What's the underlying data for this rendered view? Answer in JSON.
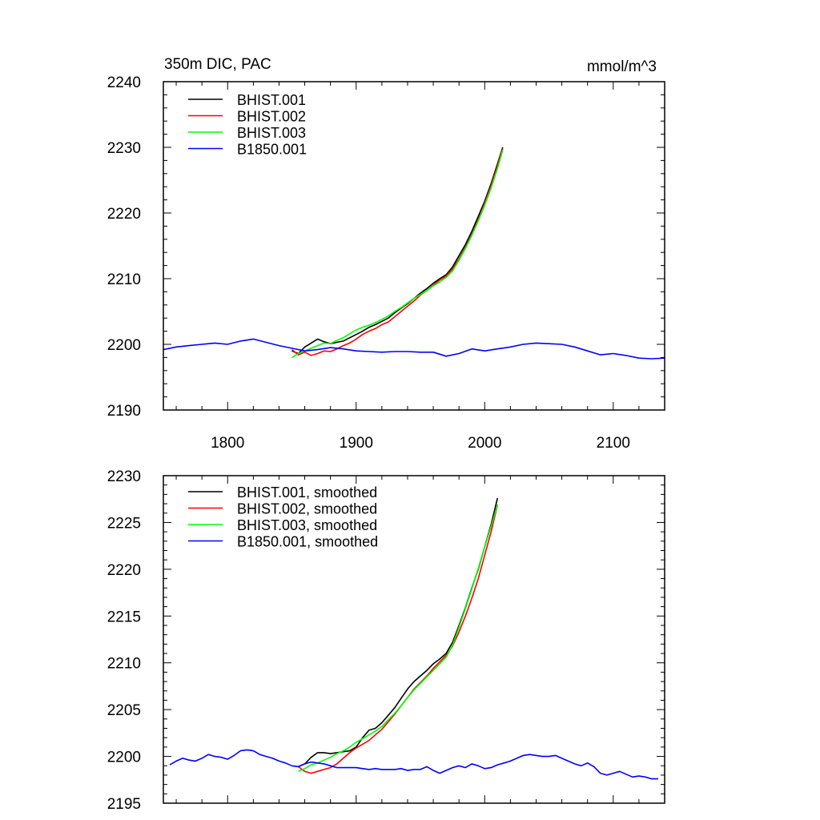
{
  "chart_data": [
    {
      "type": "line",
      "title": "350m DIC, PAC",
      "units": "mmol/m^3",
      "xlim": [
        1750,
        2140
      ],
      "ylim": [
        2190,
        2240
      ],
      "xticks": [
        1800,
        1900,
        2000,
        2100
      ],
      "yticks": [
        2190,
        2200,
        2210,
        2220,
        2230,
        2240
      ],
      "xtick_labels": [
        "1800",
        "1900",
        "2000",
        "2100"
      ],
      "ytick_labels": [
        "2190",
        "2200",
        "2210",
        "2220",
        "2230",
        "2240"
      ],
      "grid": false,
      "legend_position": "top-left",
      "series": [
        {
          "name": "BHIST.001",
          "color": "#000000",
          "x": [
            1850,
            1855,
            1860,
            1865,
            1870,
            1875,
            1880,
            1885,
            1890,
            1895,
            1900,
            1905,
            1910,
            1915,
            1920,
            1925,
            1930,
            1935,
            1940,
            1945,
            1950,
            1955,
            1960,
            1965,
            1970,
            1975,
            1980,
            1985,
            1990,
            1995,
            2000,
            2005,
            2010,
            2014
          ],
          "y": [
            2199.0,
            2198.6,
            2199.6,
            2200.2,
            2200.8,
            2200.4,
            2200.1,
            2200.3,
            2200.5,
            2201.0,
            2201.5,
            2202.0,
            2202.6,
            2203.0,
            2203.5,
            2204.0,
            2204.8,
            2205.5,
            2206.2,
            2207.0,
            2207.8,
            2208.5,
            2209.3,
            2210.0,
            2210.6,
            2211.8,
            2213.5,
            2215.2,
            2217.2,
            2219.5,
            2221.8,
            2224.5,
            2227.5,
            2230.0
          ]
        },
        {
          "name": "BHIST.002",
          "color": "#ff0000",
          "x": [
            1850,
            1855,
            1860,
            1865,
            1870,
            1875,
            1880,
            1885,
            1890,
            1895,
            1900,
            1905,
            1910,
            1915,
            1920,
            1925,
            1930,
            1935,
            1940,
            1945,
            1950,
            1955,
            1960,
            1965,
            1970,
            1975,
            1980,
            1985,
            1990,
            1995,
            2000,
            2005,
            2010,
            2014
          ],
          "y": [
            2199.2,
            2198.4,
            2198.8,
            2198.3,
            2198.6,
            2199.0,
            2198.9,
            2199.3,
            2199.8,
            2200.2,
            2200.8,
            2201.5,
            2202.0,
            2202.4,
            2203.0,
            2203.4,
            2204.2,
            2205.0,
            2205.8,
            2206.6,
            2207.5,
            2208.2,
            2209.0,
            2209.8,
            2210.4,
            2211.5,
            2213.0,
            2214.8,
            2216.8,
            2219.0,
            2221.5,
            2224.2,
            2227.2,
            2229.8
          ]
        },
        {
          "name": "BHIST.003",
          "color": "#00ff00",
          "x": [
            1850,
            1855,
            1860,
            1865,
            1870,
            1875,
            1880,
            1885,
            1890,
            1895,
            1900,
            1905,
            1910,
            1915,
            1920,
            1925,
            1930,
            1935,
            1940,
            1945,
            1950,
            1955,
            1960,
            1965,
            1970,
            1975,
            1980,
            1985,
            1990,
            1995,
            2000,
            2005,
            2010,
            2014
          ],
          "y": [
            2198.0,
            2198.6,
            2199.0,
            2199.4,
            2199.8,
            2200.2,
            2200.1,
            2200.6,
            2201.0,
            2201.6,
            2202.2,
            2202.6,
            2202.9,
            2203.3,
            2203.8,
            2204.3,
            2205.0,
            2205.6,
            2206.3,
            2207.0,
            2207.6,
            2208.2,
            2208.9,
            2209.5,
            2210.2,
            2211.2,
            2212.8,
            2214.6,
            2216.6,
            2218.8,
            2221.2,
            2223.8,
            2226.8,
            2229.6
          ]
        },
        {
          "name": "B1850.001",
          "color": "#0000ff",
          "x": [
            1750,
            1760,
            1770,
            1780,
            1790,
            1800,
            1810,
            1820,
            1830,
            1840,
            1850,
            1860,
            1870,
            1880,
            1890,
            1900,
            1910,
            1920,
            1930,
            1940,
            1950,
            1960,
            1970,
            1980,
            1990,
            2000,
            2010,
            2020,
            2030,
            2040,
            2050,
            2060,
            2070,
            2080,
            2090,
            2100,
            2110,
            2120,
            2130,
            2140
          ],
          "y": [
            2199.2,
            2199.6,
            2199.8,
            2200.0,
            2200.2,
            2200.0,
            2200.5,
            2200.8,
            2200.3,
            2199.8,
            2199.4,
            2199.0,
            2199.2,
            2199.5,
            2199.3,
            2199.0,
            2198.9,
            2198.8,
            2198.9,
            2198.9,
            2198.8,
            2198.8,
            2198.2,
            2198.6,
            2199.3,
            2199.0,
            2199.3,
            2199.6,
            2200.0,
            2200.2,
            2200.1,
            2200.0,
            2199.6,
            2199.0,
            2198.4,
            2198.6,
            2198.3,
            2197.9,
            2197.8,
            2197.9
          ]
        }
      ]
    },
    {
      "type": "line",
      "xlim": [
        1750,
        2140
      ],
      "ylim": [
        2195,
        2230
      ],
      "xticks": [
        1800,
        1900,
        2000,
        2100
      ],
      "yticks": [
        2195,
        2200,
        2205,
        2210,
        2215,
        2220,
        2225,
        2230
      ],
      "ytick_labels": [
        "2195",
        "2200",
        "2205",
        "2210",
        "2215",
        "2220",
        "2225",
        "2230"
      ],
      "grid": false,
      "legend_position": "top-left",
      "series": [
        {
          "name": "BHIST.001, smoothed",
          "color": "#000000",
          "x": [
            1855,
            1860,
            1865,
            1870,
            1875,
            1880,
            1885,
            1890,
            1895,
            1900,
            1905,
            1910,
            1915,
            1920,
            1925,
            1930,
            1935,
            1940,
            1945,
            1950,
            1955,
            1960,
            1965,
            1970,
            1975,
            1980,
            1985,
            1990,
            1995,
            2000,
            2005,
            2010
          ],
          "y": [
            2198.9,
            2199.2,
            2199.9,
            2200.4,
            2200.4,
            2200.3,
            2200.4,
            2200.5,
            2200.6,
            2201.0,
            2202.0,
            2202.8,
            2203.0,
            2203.6,
            2204.4,
            2205.2,
            2206.2,
            2207.2,
            2208.0,
            2208.6,
            2209.2,
            2209.9,
            2210.4,
            2211.0,
            2212.2,
            2214.0,
            2215.9,
            2218.0,
            2220.0,
            2222.4,
            2224.8,
            2227.6
          ]
        },
        {
          "name": "BHIST.002, smoothed",
          "color": "#ff0000",
          "x": [
            1855,
            1860,
            1865,
            1870,
            1875,
            1880,
            1885,
            1890,
            1895,
            1900,
            1905,
            1910,
            1915,
            1920,
            1925,
            1930,
            1935,
            1940,
            1945,
            1950,
            1955,
            1960,
            1965,
            1970,
            1975,
            1980,
            1985,
            1990,
            1995,
            2000,
            2005,
            2010
          ],
          "y": [
            2198.9,
            2198.4,
            2198.2,
            2198.4,
            2198.6,
            2198.8,
            2199.2,
            2199.8,
            2200.4,
            2200.9,
            2201.3,
            2201.7,
            2202.3,
            2202.9,
            2203.7,
            2204.5,
            2205.4,
            2206.3,
            2207.2,
            2207.9,
            2208.6,
            2209.4,
            2210.1,
            2210.8,
            2211.8,
            2213.3,
            2215.0,
            2216.9,
            2219.0,
            2221.5,
            2224.0,
            2226.9
          ]
        },
        {
          "name": "BHIST.003, smoothed",
          "color": "#00ff00",
          "x": [
            1855,
            1860,
            1865,
            1870,
            1875,
            1880,
            1885,
            1890,
            1895,
            1900,
            1905,
            1910,
            1915,
            1920,
            1925,
            1930,
            1935,
            1940,
            1945,
            1950,
            1955,
            1960,
            1965,
            1970,
            1975,
            1980,
            1985,
            1990,
            1995,
            2000,
            2005,
            2010
          ],
          "y": [
            2198.4,
            2198.7,
            2199.1,
            2199.3,
            2199.6,
            2199.9,
            2200.3,
            2200.6,
            2201.0,
            2201.5,
            2201.9,
            2202.3,
            2202.7,
            2203.2,
            2203.9,
            2204.6,
            2205.4,
            2206.3,
            2207.1,
            2207.8,
            2208.5,
            2209.2,
            2209.9,
            2210.6,
            2211.9,
            2213.8,
            2215.8,
            2217.9,
            2220.1,
            2222.4,
            2224.6,
            2226.9
          ]
        },
        {
          "name": "B1850.001, smoothed",
          "color": "#0000ff",
          "x": [
            1755,
            1760,
            1765,
            1770,
            1775,
            1780,
            1785,
            1790,
            1795,
            1800,
            1805,
            1810,
            1815,
            1820,
            1825,
            1830,
            1835,
            1840,
            1845,
            1850,
            1855,
            1860,
            1865,
            1870,
            1875,
            1880,
            1885,
            1890,
            1895,
            1900,
            1905,
            1910,
            1915,
            1920,
            1925,
            1930,
            1935,
            1940,
            1945,
            1950,
            1955,
            1960,
            1965,
            1970,
            1975,
            1980,
            1985,
            1990,
            1995,
            2000,
            2005,
            2010,
            2015,
            2020,
            2025,
            2030,
            2035,
            2040,
            2045,
            2050,
            2055,
            2060,
            2065,
            2070,
            2075,
            2080,
            2085,
            2090,
            2095,
            2100,
            2105,
            2110,
            2115,
            2120,
            2125,
            2130,
            2135
          ],
          "y": [
            2199.1,
            2199.5,
            2199.8,
            2199.6,
            2199.5,
            2199.8,
            2200.2,
            2200.0,
            2199.9,
            2199.7,
            2200.1,
            2200.6,
            2200.7,
            2200.6,
            2200.2,
            2200.0,
            2199.8,
            2199.5,
            2199.3,
            2199.0,
            2198.9,
            2199.2,
            2199.4,
            2199.3,
            2199.2,
            2199.0,
            2198.8,
            2198.8,
            2198.8,
            2198.8,
            2198.7,
            2198.6,
            2198.7,
            2198.6,
            2198.6,
            2198.6,
            2198.7,
            2198.5,
            2198.6,
            2198.6,
            2198.9,
            2198.5,
            2198.2,
            2198.5,
            2198.8,
            2199.0,
            2198.8,
            2199.2,
            2199.0,
            2198.7,
            2198.8,
            2199.1,
            2199.3,
            2199.5,
            2199.8,
            2200.1,
            2200.2,
            2200.1,
            2200.0,
            2200.0,
            2200.1,
            2199.8,
            2199.5,
            2199.2,
            2199.0,
            2199.3,
            2198.9,
            2198.2,
            2198.0,
            2198.2,
            2198.4,
            2198.1,
            2197.8,
            2197.9,
            2197.8,
            2197.6,
            2197.6
          ]
        }
      ]
    }
  ]
}
